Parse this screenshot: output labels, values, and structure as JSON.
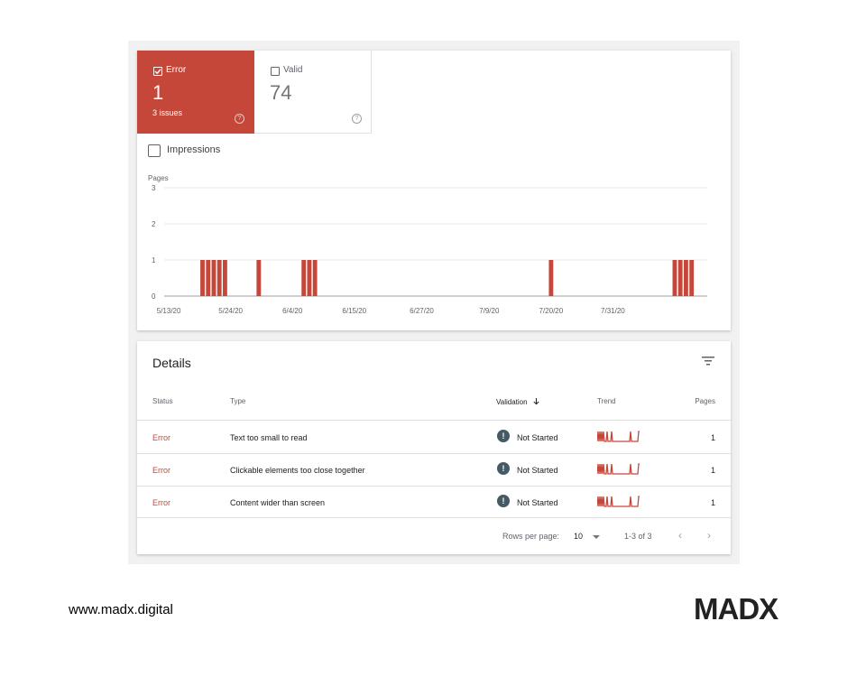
{
  "tiles": {
    "error": {
      "label": "Error",
      "count": "1",
      "issues": "3 issues",
      "color": "#c5473a",
      "checked": true
    },
    "valid": {
      "label": "Valid",
      "count": "74",
      "checked": false
    }
  },
  "impressions": {
    "label": "Impressions",
    "checked": false
  },
  "chart_data": {
    "type": "bar",
    "ylabel": "Pages",
    "yticks": [
      "0",
      "1",
      "2",
      "3"
    ],
    "ylim": [
      0,
      3
    ],
    "xlabels": [
      "5/13/20",
      "5/24/20",
      "6/4/20",
      "6/15/20",
      "6/27/20",
      "7/9/20",
      "7/20/20",
      "7/31/20"
    ],
    "grid": true,
    "color": "#c5473a",
    "days": [
      "5/13/20",
      "5/14/20",
      "5/15/20",
      "5/16/20",
      "5/17/20",
      "5/18/20",
      "5/19/20",
      "5/20/20",
      "5/21/20",
      "5/22/20",
      "5/23/20",
      "5/24/20",
      "5/25/20",
      "5/26/20",
      "5/27/20",
      "5/28/20",
      "5/29/20",
      "5/30/20",
      "5/31/20",
      "6/1/20",
      "6/2/20",
      "6/3/20",
      "6/4/20",
      "6/5/20",
      "6/6/20",
      "6/7/20",
      "6/8/20",
      "6/9/20",
      "6/10/20",
      "6/11/20",
      "6/12/20",
      "6/13/20",
      "6/14/20",
      "6/15/20",
      "6/16/20",
      "6/17/20",
      "6/18/20",
      "6/19/20",
      "6/20/20",
      "6/21/20",
      "6/22/20",
      "6/23/20",
      "6/24/20",
      "6/25/20",
      "6/26/20",
      "6/27/20",
      "6/28/20",
      "6/29/20",
      "6/30/20",
      "7/1/20",
      "7/2/20",
      "7/3/20",
      "7/4/20",
      "7/5/20",
      "7/6/20",
      "7/7/20",
      "7/8/20",
      "7/9/20",
      "7/10/20",
      "7/11/20",
      "7/12/20",
      "7/13/20",
      "7/14/20",
      "7/15/20",
      "7/16/20",
      "7/17/20",
      "7/18/20",
      "7/19/20",
      "7/20/20",
      "7/21/20",
      "7/22/20",
      "7/23/20",
      "7/24/20",
      "7/25/20",
      "7/26/20",
      "7/27/20",
      "7/28/20",
      "7/29/20",
      "7/30/20",
      "7/31/20",
      "8/1/20",
      "8/2/20",
      "8/3/20",
      "8/4/20",
      "8/5/20",
      "8/6/20",
      "8/7/20",
      "8/8/20",
      "8/9/20",
      "8/10/20",
      "8/11/20",
      "8/12/20",
      "8/13/20",
      "8/14/20",
      "8/15/20"
    ],
    "values": [
      0,
      0,
      0,
      0,
      0,
      0,
      1,
      1,
      1,
      1,
      1,
      0,
      0,
      0,
      0,
      0,
      1,
      0,
      0,
      0,
      0,
      0,
      0,
      0,
      1,
      1,
      1,
      0,
      0,
      0,
      0,
      0,
      0,
      0,
      0,
      0,
      0,
      0,
      0,
      0,
      0,
      0,
      0,
      0,
      0,
      0,
      0,
      0,
      0,
      0,
      0,
      0,
      0,
      0,
      0,
      0,
      0,
      0,
      0,
      0,
      0,
      0,
      0,
      0,
      0,
      0,
      0,
      0,
      1,
      0,
      0,
      0,
      0,
      0,
      0,
      0,
      0,
      0,
      0,
      0,
      0,
      0,
      0,
      0,
      0,
      0,
      0,
      0,
      0,
      0,
      1,
      1,
      1,
      1,
      0
    ]
  },
  "details": {
    "title": "Details",
    "columns": {
      "status": "Status",
      "type": "Type",
      "validation": "Validation",
      "trend": "Trend",
      "pages": "Pages"
    },
    "sort_icon": "arrow-down-icon",
    "rows": [
      {
        "status": "Error",
        "type": "Text too small to read",
        "validation": "Not Started",
        "pages": "1"
      },
      {
        "status": "Error",
        "type": "Clickable elements too close together",
        "validation": "Not Started",
        "pages": "1"
      },
      {
        "status": "Error",
        "type": "Content wider than screen",
        "validation": "Not Started",
        "pages": "1"
      }
    ],
    "footer": {
      "rows_label": "Rows per page:",
      "rows_value": "10",
      "range": "1-3 of 3"
    }
  },
  "branding": {
    "site": "www.madx.digital",
    "logo": "MADX"
  }
}
